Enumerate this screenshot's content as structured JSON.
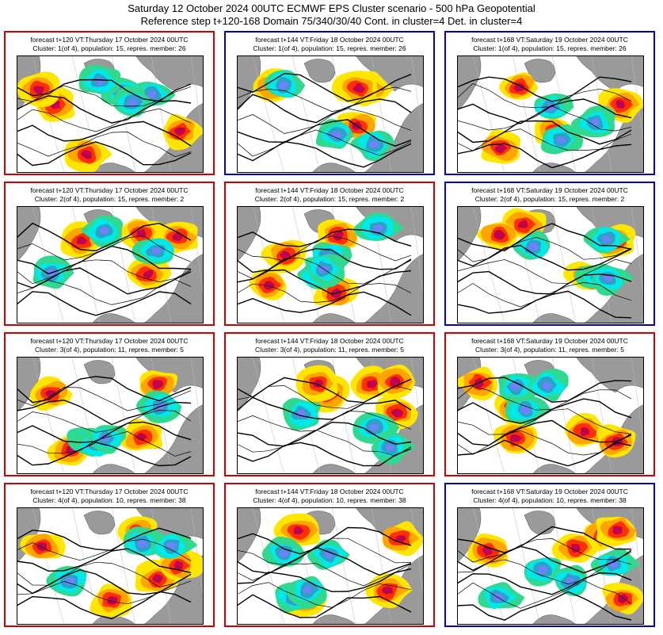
{
  "header": {
    "line1": "Saturday 12 October 2024 00UTC ECMWF EPS Cluster scenario - 500 hPa Geopotential",
    "line2": "Reference step t+120-168 Domain 75/340/30/40 Cont. in cluster=4 Det. in cluster=4"
  },
  "colors": {
    "red_frame": "#d00000",
    "blue_frame": "#0000c8"
  },
  "rows": [
    [
      {
        "line1": "forecast t+120 VT:Thursday 17 October 2024 00UTC",
        "line2": "Cluster: 1(of 4), population: 15, repres. member: 26",
        "frame": "red"
      },
      {
        "line1": "forecast t+144 VT:Friday 18 October 2024 00UTC",
        "line2": "Cluster: 1(of 4), population: 15, repres. member: 26",
        "frame": "blue"
      },
      {
        "line1": "forecast t+168 VT:Saturday 19 October 2024 00UTC",
        "line2": "Cluster: 1(of 4), population: 15, repres. member: 26",
        "frame": "blue"
      }
    ],
    [
      {
        "line1": "forecast t+120 VT:Thursday 17 October 2024 00UTC",
        "line2": "Cluster: 2(of 4), population: 15, repres. member: 2",
        "frame": "red"
      },
      {
        "line1": "forecast t+144 VT:Friday 18 October 2024 00UTC",
        "line2": "Cluster: 2(of 4), population: 15, repres. member: 2",
        "frame": "red"
      },
      {
        "line1": "forecast t+168 VT:Saturday 19 October 2024 00UTC",
        "line2": "Cluster: 2(of 4), population: 15, repres. member: 2",
        "frame": "blue"
      }
    ],
    [
      {
        "line1": "forecast t+120 VT:Thursday 17 October 2024 00UTC",
        "line2": "Cluster: 3(of 4), population: 11, repres. member: 5",
        "frame": "red"
      },
      {
        "line1": "forecast t+144 VT:Friday 18 October 2024 00UTC",
        "line2": "Cluster: 3(of 4), population: 11, repres. member: 5",
        "frame": "red"
      },
      {
        "line1": "forecast t+168 VT:Saturday 19 October 2024 00UTC",
        "line2": "Cluster: 3(of 4), population: 11, repres. member: 5",
        "frame": "red"
      }
    ],
    [
      {
        "line1": "forecast t+120 VT:Thursday 17 October 2024 00UTC",
        "line2": "Cluster: 4(of 4), population: 10, repres. member: 38",
        "frame": "red"
      },
      {
        "line1": "forecast t+144 VT:Friday 18 October 2024 00UTC",
        "line2": "Cluster: 4(of 4), population: 10, repres. member: 38",
        "frame": "red"
      },
      {
        "line1": "forecast t+168 VT:Saturday 19 October 2024 00UTC",
        "line2": "Cluster: 4(of 4), population: 10, repres. member: 38",
        "frame": "blue"
      }
    ]
  ]
}
